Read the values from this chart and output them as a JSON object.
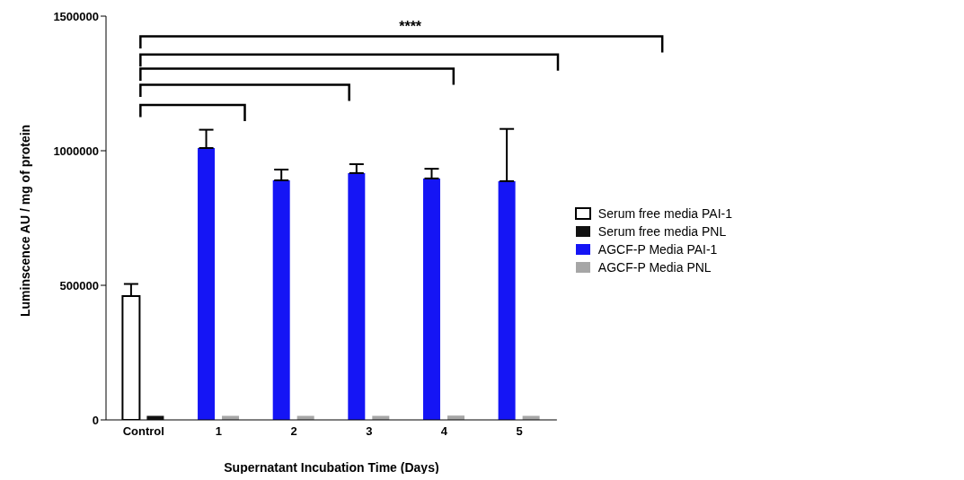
{
  "chart_data": {
    "type": "bar",
    "xlabel": "Supernatant Incubation Time (Days)",
    "ylabel": "Luminscence AU / mg of protein",
    "categories": [
      "Control",
      "1",
      "2",
      "3",
      "4",
      "5"
    ],
    "series": [
      {
        "name": "Serum free media PAI-1",
        "color": "#ffffff",
        "values": [
          460000,
          null,
          null,
          null,
          null,
          null
        ],
        "errors": [
          45000,
          null,
          null,
          null,
          null,
          null
        ]
      },
      {
        "name": "Serum free media PNL",
        "color": "#111111",
        "values": [
          15000,
          null,
          null,
          null,
          null,
          null
        ]
      },
      {
        "name": "AGCF-P Media PAI-1",
        "color": "#1515f5",
        "values": [
          null,
          1010000,
          890000,
          917000,
          897000,
          887000
        ],
        "errors": [
          null,
          68000,
          40000,
          33000,
          36000,
          194000
        ]
      },
      {
        "name": "AGCF-P Media PNL",
        "color": "#a6a6a6",
        "values": [
          null,
          15000,
          15000,
          15000,
          16000,
          15000
        ]
      }
    ],
    "ylim": [
      0,
      1500000
    ],
    "yticks": [
      0,
      500000,
      1000000,
      1500000
    ],
    "grid": false,
    "legend": "right",
    "annotations": [
      "****"
    ]
  }
}
